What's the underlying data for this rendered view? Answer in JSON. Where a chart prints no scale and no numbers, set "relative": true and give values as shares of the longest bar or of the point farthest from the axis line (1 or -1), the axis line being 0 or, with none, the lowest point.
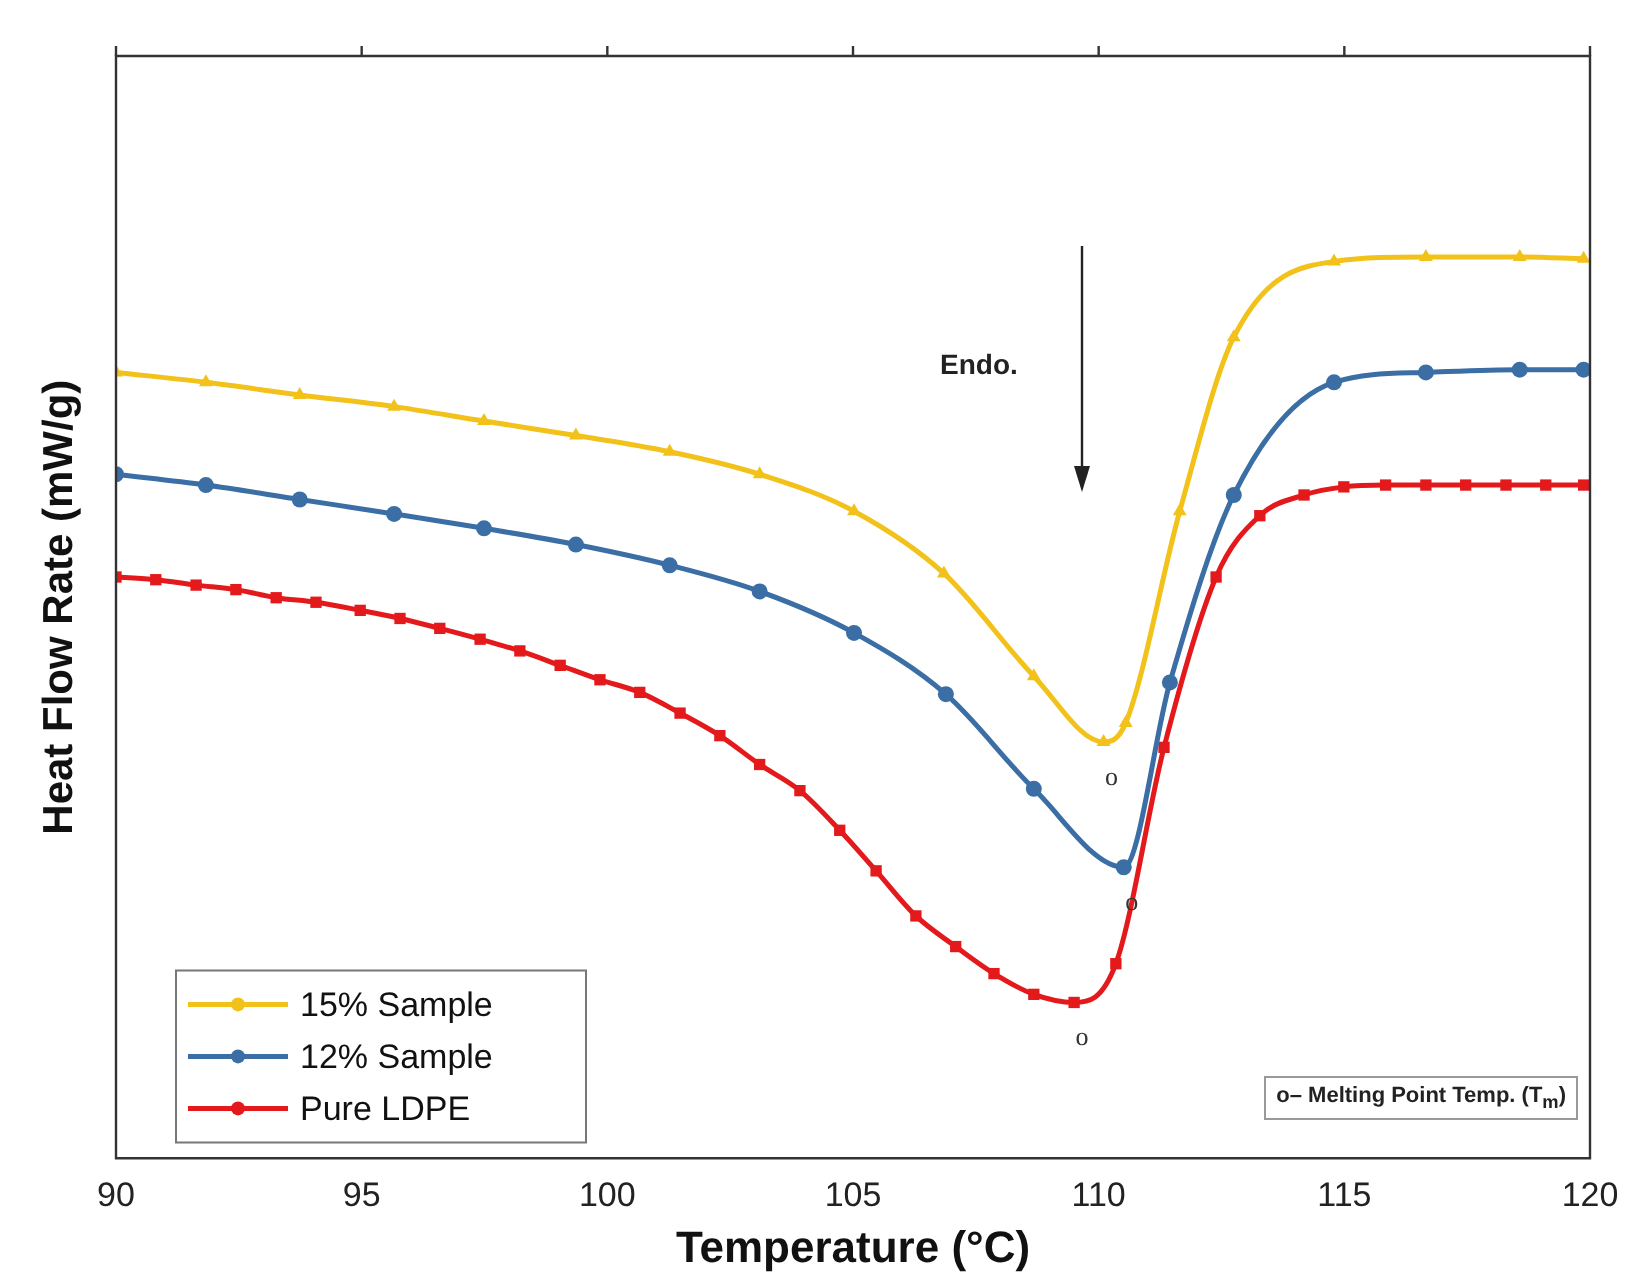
{
  "chart_data": {
    "type": "line",
    "relative": true,
    "xlabel": "Temperature (°C)",
    "ylabel": "Heat Flow Rate (mW/g)",
    "xlim": [
      90,
      120
    ],
    "xticks": [
      90,
      95,
      100,
      105,
      110,
      115,
      120
    ],
    "legend": "bottom left",
    "grid": false,
    "line_style": "solid",
    "series": [
      {
        "name": "15% Sample",
        "color": "#f2c21b",
        "marker": "triangle",
        "x": [
          90,
          91.83,
          93.74,
          95.66,
          97.49,
          99.36,
          101.27,
          103.1,
          105.02,
          106.85,
          108.68,
          110.1,
          110.55,
          111.65,
          112.75,
          114.79,
          116.66,
          118.57,
          119.87
        ],
        "values": [
          0.872,
          0.861,
          0.847,
          0.834,
          0.818,
          0.802,
          0.784,
          0.759,
          0.718,
          0.649,
          0.535,
          0.462,
          0.483,
          0.718,
          0.911,
          0.995,
          1,
          1,
          0.998
        ]
      },
      {
        "name": "12% Sample",
        "color": "#3a6ea5",
        "marker": "circle",
        "x": [
          90,
          91.83,
          93.74,
          95.66,
          97.49,
          99.36,
          101.27,
          103.1,
          105.02,
          106.89,
          108.68,
          110.51,
          111.45,
          112.75,
          114.79,
          116.66,
          118.57,
          119.87
        ],
        "values": [
          0.759,
          0.747,
          0.731,
          0.715,
          0.699,
          0.681,
          0.658,
          0.629,
          0.583,
          0.515,
          0.41,
          0.323,
          0.528,
          0.736,
          0.861,
          0.872,
          0.875,
          0.875
        ]
      },
      {
        "name": "Pure LDPE",
        "color": "#e3191c",
        "marker": "square",
        "x": [
          90,
          90.81,
          91.63,
          92.44,
          93.26,
          94.07,
          94.97,
          95.78,
          96.59,
          97.41,
          98.22,
          99.04,
          99.85,
          100.66,
          101.48,
          102.29,
          103.1,
          103.92,
          104.73,
          105.47,
          106.28,
          107.09,
          107.87,
          108.68,
          109.5,
          110.35,
          111.33,
          112.39,
          113.28,
          114.18,
          114.99,
          115.84,
          116.66,
          117.47,
          118.29,
          119.1,
          119.87
        ],
        "values": [
          0.645,
          0.642,
          0.636,
          0.631,
          0.622,
          0.617,
          0.608,
          0.599,
          0.588,
          0.576,
          0.563,
          0.547,
          0.531,
          0.517,
          0.494,
          0.469,
          0.437,
          0.408,
          0.364,
          0.319,
          0.269,
          0.235,
          0.205,
          0.182,
          0.173,
          0.216,
          0.456,
          0.645,
          0.713,
          0.736,
          0.745,
          0.747,
          0.747,
          0.747,
          0.747,
          0.747,
          0.747
        ]
      }
    ],
    "annotations": [
      "Endo.",
      "o– Melting Point Temp. (T$_{m}$)",
      "o",
      "o",
      "o"
    ]
  }
}
